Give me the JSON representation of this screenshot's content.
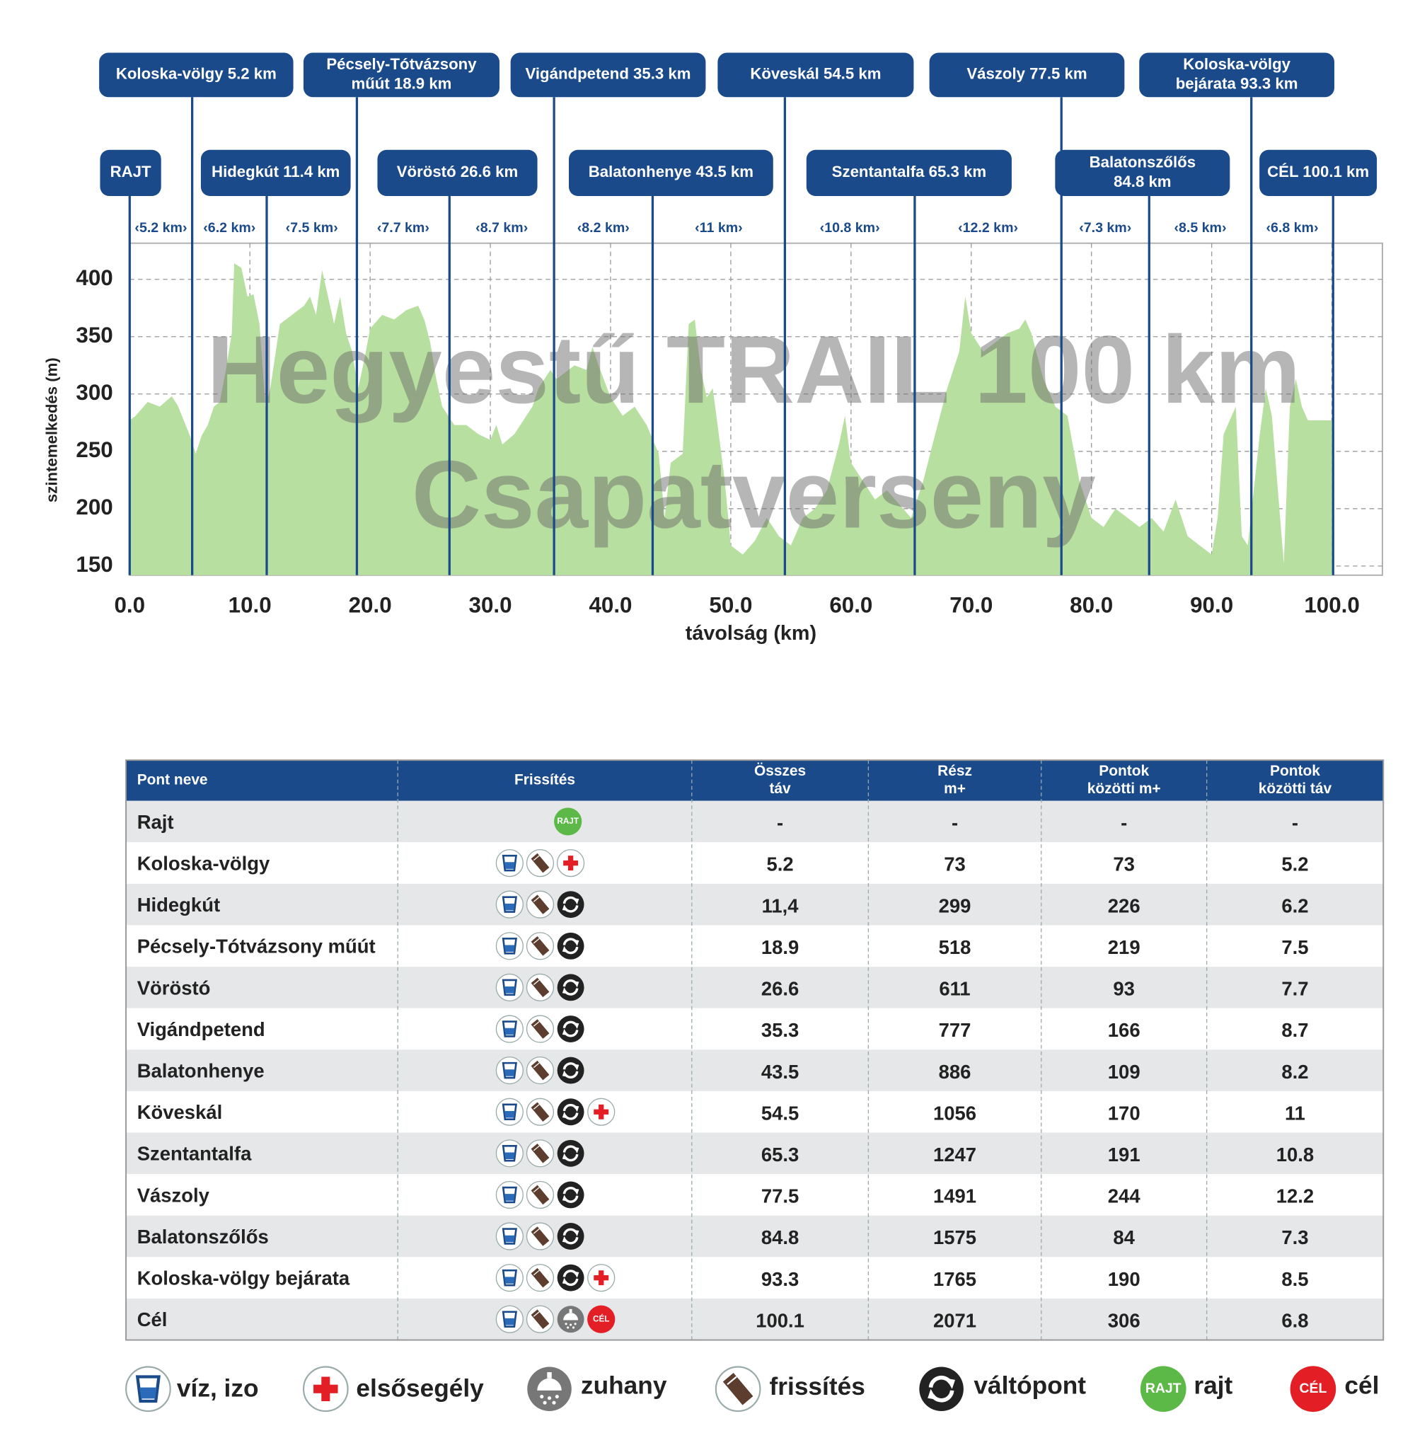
{
  "chart_data": {
    "type": "area",
    "watermark": [
      "Hegyestű TRAIL 100 km",
      "Csapatverseny"
    ],
    "xlabel": "távolság (km)",
    "ylabel": "szintemelkedés (m)",
    "x": [
      0,
      0.5,
      1.5,
      2.5,
      3.5,
      4,
      5,
      5.5,
      6,
      6.5,
      7,
      7.5,
      8,
      8.5,
      8.7,
      9.3,
      9.8,
      10.3,
      10.8,
      11.3,
      11.7,
      12.5,
      13.5,
      14.5,
      15,
      15.5,
      16,
      16.5,
      17,
      17.5,
      18,
      18.5,
      19,
      19.5,
      20,
      21,
      22,
      23,
      24,
      24.5,
      25,
      25.5,
      26,
      27,
      28,
      29,
      30,
      30.5,
      31,
      32,
      33,
      33.5,
      34,
      35,
      35.5,
      36,
      37,
      38,
      38.5,
      39,
      40,
      41,
      42,
      43,
      44,
      44.5,
      45,
      46,
      46.5,
      47,
      47.5,
      48,
      48.5,
      49,
      49.5,
      50,
      51,
      52,
      53,
      54,
      55,
      56,
      57,
      58,
      59,
      59.5,
      60,
      61,
      62,
      63,
      64,
      65,
      66,
      67,
      68,
      69,
      69.5,
      70,
      71,
      72,
      73,
      74,
      74.5,
      75,
      76,
      77,
      78,
      79,
      80,
      81,
      82,
      83,
      84,
      85,
      86,
      87,
      88,
      89,
      90,
      90.5,
      91,
      92,
      92.5,
      93,
      94,
      94.5,
      95,
      96,
      96.5,
      97,
      97.5,
      98,
      99,
      100
    ],
    "values": [
      277,
      281,
      293,
      289,
      298,
      290,
      264,
      248,
      264,
      273,
      289,
      293,
      321,
      353,
      414,
      410,
      385,
      387,
      361,
      289,
      305,
      361,
      369,
      377,
      385,
      369,
      408,
      385,
      361,
      385,
      353,
      337,
      305,
      329,
      357,
      369,
      365,
      373,
      377,
      365,
      345,
      313,
      289,
      273,
      273,
      265,
      260,
      273,
      256,
      265,
      281,
      289,
      305,
      321,
      313,
      317,
      325,
      321,
      341,
      325,
      297,
      281,
      289,
      273,
      248,
      192,
      240,
      248,
      361,
      365,
      321,
      297,
      305,
      265,
      224,
      168,
      160,
      172,
      192,
      176,
      168,
      192,
      200,
      216,
      256,
      281,
      240,
      224,
      208,
      216,
      204,
      192,
      224,
      265,
      305,
      337,
      385,
      353,
      337,
      345,
      353,
      357,
      365,
      353,
      313,
      289,
      281,
      224,
      192,
      184,
      200,
      192,
      184,
      192,
      180,
      208,
      176,
      168,
      160,
      192,
      265,
      289,
      176,
      168,
      265,
      305,
      281,
      152,
      289,
      313,
      289,
      277,
      277,
      277
    ],
    "color": "#b7df9f",
    "marker_color": "#1a4a8a",
    "xlim": [
      0,
      104.2
    ],
    "ylim": [
      142,
      431.5
    ],
    "xticks": [
      {
        "value": 0,
        "label": "0.0"
      },
      {
        "value": 10,
        "label": "10.0"
      },
      {
        "value": 20,
        "label": "20.0"
      },
      {
        "value": 30,
        "label": "30.0"
      },
      {
        "value": 40,
        "label": "40.0"
      },
      {
        "value": 50,
        "label": "50.0"
      },
      {
        "value": 60,
        "label": "60.0"
      },
      {
        "value": 70,
        "label": "70.0"
      },
      {
        "value": 80,
        "label": "80.0"
      },
      {
        "value": 90,
        "label": "90.0"
      },
      {
        "value": 100,
        "label": "100.0"
      }
    ],
    "yticks": [
      150,
      200,
      250,
      300,
      350,
      400
    ],
    "grid": true,
    "markers": [
      {
        "label": [
          "RAJT"
        ],
        "x": 0
      },
      {
        "label": [
          "Koloska-völgy 5.2 km"
        ],
        "x": 5.2
      },
      {
        "label": [
          "Hidegkút 11.4 km"
        ],
        "x": 11.4
      },
      {
        "label": [
          "Pécsely-Tótvázsony",
          "műút 18.9 km"
        ],
        "x": 18.9
      },
      {
        "label": [
          "Vöröstó 26.6 km"
        ],
        "x": 26.6
      },
      {
        "label": [
          "Vigándpetend 35.3 km"
        ],
        "x": 35.3
      },
      {
        "label": [
          "Balatonhenye 43.5 km"
        ],
        "x": 43.5
      },
      {
        "label": [
          "Köveskál 54.5 km"
        ],
        "x": 54.5
      },
      {
        "label": [
          "Szentantalfa 65.3 km"
        ],
        "x": 65.3
      },
      {
        "label": [
          "Vászoly 77.5 km"
        ],
        "x": 77.5
      },
      {
        "label": [
          "Balatonszőlős",
          "84.8 km"
        ],
        "x": 84.8
      },
      {
        "label": [
          "Koloska-völgy",
          "bejárata 93.3 km"
        ],
        "x": 93.3
      },
      {
        "label": [
          "CÉL 100.1 km"
        ],
        "x": 100.1
      }
    ],
    "segments": [
      "‹5.2 km›",
      "‹6.2 km›",
      "‹7.5 km›",
      "‹7.7 km›",
      "‹8.7 km›",
      "‹8.2 km›",
      "‹11 km›",
      "‹10.8 km›",
      "‹12.2 km›",
      "‹7.3 km›",
      "‹8.5 km›",
      "‹6.8 km›"
    ]
  },
  "table": {
    "header": [
      [
        "Pont neve"
      ],
      [
        "Frissítés"
      ],
      [
        "Összes",
        "táv"
      ],
      [
        "Rész",
        "m+"
      ],
      [
        "Pontok",
        "közötti m+"
      ],
      [
        "Pontok",
        "közötti táv"
      ]
    ],
    "rows": [
      [
        "Rajt",
        "-",
        "-",
        "-",
        "-"
      ],
      [
        "Koloska-völgy",
        5.2,
        73,
        73,
        5.2
      ],
      [
        "Hidegkút",
        "11,4",
        299,
        226,
        6.2
      ],
      [
        "Pécsely-Tótvázsony műút",
        18.9,
        518,
        219,
        7.5
      ],
      [
        "Vöröstó",
        26.6,
        611,
        93,
        7.7
      ],
      [
        "Vigándpetend",
        35.3,
        777,
        166,
        8.7
      ],
      [
        "Balatonhenye",
        43.5,
        886,
        109,
        8.2
      ],
      [
        "Köveskál",
        54.5,
        1056,
        170,
        11
      ],
      [
        "Szentantalfa",
        65.3,
        1247,
        191,
        10.8
      ],
      [
        "Vászoly",
        77.5,
        1491,
        244,
        12.2
      ],
      [
        "Balatonszőlős",
        84.8,
        1575,
        84,
        7.3
      ],
      [
        "Koloska-völgy bejárata",
        93.3,
        1765,
        190,
        8.5
      ],
      [
        "Cél",
        100.1,
        2071,
        306,
        6.8
      ]
    ]
  },
  "legend": [
    {
      "label": "víz, izo"
    },
    {
      "label": "elsősegély"
    },
    {
      "label": "zuhany"
    },
    {
      "label": "frissítés"
    },
    {
      "label": "váltópont"
    },
    {
      "badge": "RAJT",
      "label": "rajt"
    },
    {
      "badge": "CÉL",
      "label": "cél"
    }
  ]
}
